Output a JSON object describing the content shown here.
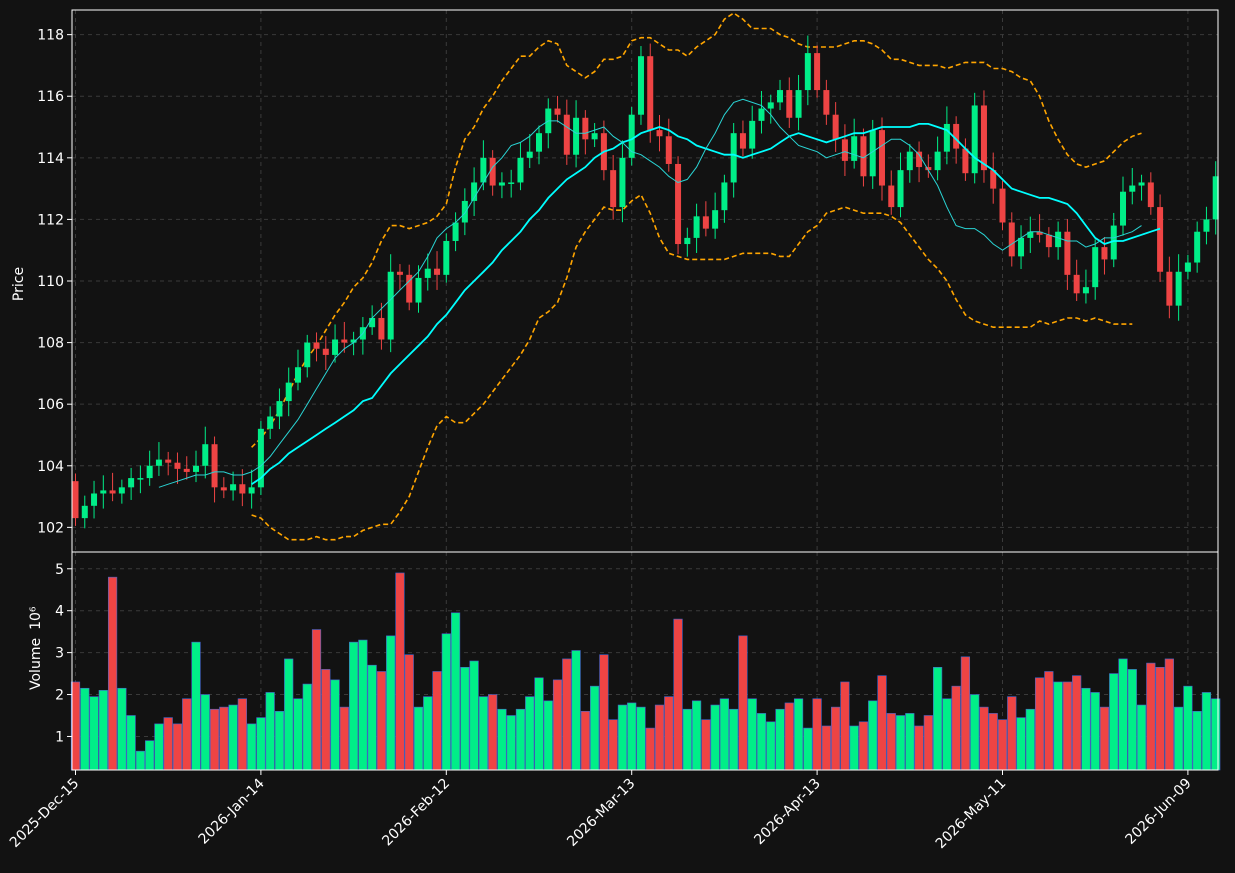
{
  "chart_data": [
    {
      "type": "candlestick",
      "title": "",
      "ylabel": "Price",
      "ylim": [
        101.2,
        118.8
      ],
      "yticks": [
        102,
        104,
        106,
        108,
        110,
        112,
        114,
        116,
        118
      ],
      "grid": true,
      "x_ticks": [
        "2025-Dec-15",
        "2026-Jan-14",
        "2026-Feb-12",
        "2026-Mar-13",
        "2026-Apr-13",
        "2026-May-11",
        "2026-Jun-09"
      ],
      "x_tick_index": [
        0,
        20,
        40,
        60,
        80,
        100,
        120
      ],
      "n_bars": 124,
      "ohlc": {
        "open": [
          103.5,
          102.3,
          102.7,
          103.1,
          103.2,
          103.1,
          103.3,
          103.6,
          103.6,
          104.0,
          104.2,
          104.1,
          103.9,
          103.8,
          104.0,
          104.7,
          103.3,
          103.2,
          103.4,
          103.1,
          103.3,
          105.2,
          105.6,
          106.1,
          106.7,
          107.2,
          108.0,
          107.8,
          107.6,
          108.1,
          108.0,
          108.1,
          108.5,
          108.8,
          108.1,
          110.3,
          110.2,
          109.3,
          110.1,
          110.4,
          110.2,
          111.3,
          111.9,
          112.6,
          113.2,
          114.0,
          113.1,
          113.2,
          113.2,
          114.0,
          114.2,
          114.8,
          115.6,
          115.4,
          114.1,
          115.3,
          114.6,
          114.8,
          113.6,
          112.4,
          114.0,
          115.4,
          117.3,
          114.9,
          114.7,
          113.8,
          111.2,
          111.4,
          112.1,
          111.7,
          112.3,
          113.2,
          114.8,
          114.3,
          115.2,
          115.6,
          115.8,
          116.2,
          115.3,
          116.2,
          117.4,
          116.2,
          115.4,
          114.6,
          113.9,
          114.7,
          113.4,
          114.9,
          113.1,
          112.4,
          113.6,
          114.2,
          113.7,
          113.6,
          114.2,
          115.1,
          114.3,
          113.5,
          115.7,
          113.6,
          113.0,
          111.9,
          110.8,
          111.4,
          111.6,
          111.5,
          111.1,
          111.6,
          110.2,
          109.6,
          109.8,
          111.1,
          110.7,
          111.8,
          112.9,
          113.1,
          113.2,
          112.4,
          110.3,
          109.2,
          110.3,
          110.6,
          111.6,
          112.0,
          112.8,
          113.4
        ]
      },
      "series": [
        {
          "name": "",
          "color": "#ffa500",
          "style": "dashed",
          "start_index": 19,
          "values": [
            104.6,
            104.9,
            105.3,
            105.8,
            106.4,
            107.0,
            107.5,
            107.9,
            108.4,
            108.9,
            109.3,
            109.8,
            110.1,
            110.6,
            111.3,
            111.8,
            111.8,
            111.7,
            111.8,
            111.9,
            112.1,
            112.5,
            113.7,
            114.6,
            115.0,
            115.6,
            116.0,
            116.5,
            116.9,
            117.3,
            117.3,
            117.6,
            117.8,
            117.7,
            117.0,
            116.8,
            116.6,
            116.8,
            117.2,
            117.2,
            117.3,
            117.8,
            117.9,
            117.9,
            117.7,
            117.5,
            117.5,
            117.3,
            117.6,
            117.8,
            118.0,
            118.5,
            118.7,
            118.5,
            118.2,
            118.2,
            118.2,
            118.0,
            117.9,
            117.7,
            117.6,
            117.6,
            117.6,
            117.6,
            117.7,
            117.8,
            117.8,
            117.7,
            117.5,
            117.2,
            117.2,
            117.1,
            117.0,
            117.0,
            117.0,
            116.9,
            117.0,
            117.1,
            117.1,
            117.1,
            116.9,
            116.9,
            116.8,
            116.6,
            116.5,
            116.0,
            115.2,
            114.6,
            114.1,
            113.8,
            113.7,
            113.8,
            113.9,
            114.2,
            114.5,
            114.7,
            114.8
          ]
        },
        {
          "name": "",
          "color": "#ffa500",
          "style": "dashed",
          "start_index": 19,
          "values": [
            102.4,
            102.3,
            102.0,
            101.8,
            101.6,
            101.6,
            101.6,
            101.7,
            101.6,
            101.6,
            101.7,
            101.7,
            101.9,
            102.0,
            102.1,
            102.1,
            102.5,
            103.0,
            103.8,
            104.6,
            105.3,
            105.6,
            105.4,
            105.4,
            105.7,
            106.0,
            106.4,
            106.8,
            107.2,
            107.6,
            108.1,
            108.8,
            109.0,
            109.3,
            110.1,
            111.1,
            111.6,
            112.0,
            112.4,
            112.3,
            112.3,
            112.6,
            112.8,
            112.2,
            111.4,
            110.9,
            110.8,
            110.7,
            110.7,
            110.7,
            110.7,
            110.7,
            110.8,
            110.9,
            110.9,
            110.9,
            110.9,
            110.8,
            110.8,
            111.2,
            111.6,
            111.8,
            112.2,
            112.3,
            112.4,
            112.3,
            112.2,
            112.2,
            112.2,
            112.1,
            111.9,
            111.5,
            111.1,
            110.7,
            110.4,
            110.0,
            109.4,
            108.9,
            108.7,
            108.6,
            108.5,
            108.5,
            108.5,
            108.5,
            108.5,
            108.7,
            108.6,
            108.7,
            108.8,
            108.8,
            108.7,
            108.8,
            108.7,
            108.6,
            108.6,
            108.6
          ]
        },
        {
          "name": "",
          "color": "#00ffff",
          "style": "solid",
          "start_index": 19,
          "values": [
            103.4,
            103.6,
            103.9,
            104.1,
            104.4,
            104.6,
            104.8,
            105.0,
            105.2,
            105.4,
            105.6,
            105.8,
            106.1,
            106.2,
            106.6,
            107.0,
            107.3,
            107.6,
            107.9,
            108.2,
            108.6,
            108.9,
            109.3,
            109.7,
            110.0,
            110.3,
            110.6,
            111.0,
            111.3,
            111.6,
            112.0,
            112.3,
            112.7,
            113.0,
            113.3,
            113.5,
            113.7,
            114.0,
            114.2,
            114.3,
            114.5,
            114.6,
            114.8,
            114.9,
            115.0,
            114.9,
            114.7,
            114.6,
            114.4,
            114.3,
            114.2,
            114.1,
            114.1,
            114.0,
            114.1,
            114.2,
            114.3,
            114.5,
            114.7,
            114.8,
            114.7,
            114.6,
            114.5,
            114.6,
            114.7,
            114.8,
            114.8,
            114.9,
            115.0,
            115.0,
            115.0,
            115.0,
            115.1,
            115.1,
            115.0,
            114.9,
            114.6,
            114.3,
            114.0,
            113.8,
            113.6,
            113.3,
            113.0,
            112.9,
            112.8,
            112.7,
            112.7,
            112.6,
            112.5,
            112.2,
            111.8,
            111.4,
            111.2,
            111.3,
            111.3,
            111.4,
            111.5,
            111.6,
            111.7
          ]
        },
        {
          "name": "",
          "color": "#2ad4d4",
          "style": "thin",
          "start_index": 9,
          "values": [
            103.3,
            103.4,
            103.5,
            103.6,
            103.7,
            103.7,
            103.8,
            103.8,
            103.7,
            103.7,
            103.8,
            104.0,
            104.3,
            104.7,
            105.1,
            105.5,
            106.0,
            106.5,
            107.0,
            107.5,
            107.8,
            108.0,
            108.3,
            108.8,
            109.1,
            109.4,
            109.7,
            110.0,
            110.3,
            110.8,
            111.4,
            111.7,
            111.9,
            112.2,
            112.7,
            113.2,
            113.7,
            114.0,
            114.4,
            114.5,
            114.7,
            115.0,
            115.2,
            115.2,
            115.0,
            114.8,
            114.8,
            114.9,
            115.0,
            114.7,
            114.5,
            114.2,
            114.1,
            113.9,
            113.7,
            113.4,
            113.2,
            113.3,
            113.7,
            114.3,
            114.8,
            115.4,
            115.8,
            115.9,
            115.8,
            115.7,
            115.4,
            115.0,
            114.7,
            114.4,
            114.3,
            114.2,
            114.0,
            114.1,
            114.2,
            114.1,
            114.0,
            114.2,
            114.4,
            114.6,
            114.6,
            114.4,
            114.1,
            113.6,
            113.1,
            112.4,
            111.8,
            111.7,
            111.7,
            111.5,
            111.2,
            111.0,
            111.2,
            111.4,
            111.6,
            111.6,
            111.5,
            111.4,
            111.3,
            111.3,
            111.1,
            111.2,
            111.4,
            111.4,
            111.5,
            111.6,
            111.8
          ]
        }
      ]
    },
    {
      "type": "bar",
      "title": "",
      "ylabel": "Volume",
      "ylabel_exponent": "10⁶",
      "ylim": [
        0.2,
        5.4
      ],
      "yticks": [
        1,
        2,
        3,
        4,
        5
      ],
      "grid": true,
      "values": [
        2.3,
        2.15,
        1.95,
        2.1,
        4.8,
        2.15,
        1.5,
        0.65,
        0.9,
        1.3,
        1.45,
        1.3,
        1.9,
        3.25,
        2.0,
        1.65,
        1.7,
        1.75,
        1.9,
        1.3,
        1.45,
        2.05,
        1.6,
        2.85,
        1.9,
        2.25,
        3.55,
        2.6,
        2.35,
        1.7,
        3.25,
        3.3,
        2.7,
        2.55,
        3.4,
        4.9,
        2.95,
        1.7,
        1.95,
        2.55,
        3.45,
        3.95,
        2.65,
        2.8,
        1.95,
        2.0,
        1.65,
        1.5,
        1.65,
        1.95,
        2.4,
        1.85,
        2.35,
        2.85,
        3.05,
        1.6,
        2.2,
        2.95,
        1.4,
        1.75,
        1.8,
        1.7,
        1.2,
        1.75,
        1.95,
        3.8,
        1.65,
        1.85,
        1.4,
        1.75,
        1.9,
        1.65,
        3.4,
        1.9,
        1.55,
        1.35,
        1.65,
        1.8,
        1.9,
        1.2,
        1.9,
        1.25,
        1.7,
        2.3,
        1.25,
        1.35,
        1.85,
        2.45,
        1.55,
        1.5,
        1.55,
        1.25,
        1.5,
        2.65,
        1.9,
        2.2,
        2.9,
        2.0,
        1.7,
        1.55,
        1.4,
        1.95,
        1.45,
        1.65,
        2.4,
        2.55,
        2.3,
        2.3,
        2.45,
        2.15,
        2.05,
        1.7,
        2.5,
        2.85,
        2.6,
        1.75,
        2.75,
        2.65,
        2.85,
        1.7,
        2.2,
        1.6,
        2.05,
        1.9
      ]
    }
  ],
  "colors": {
    "background": "#121212",
    "up": "#00ee88",
    "down": "#ee4444",
    "axis": "#ffffff",
    "grid": "#3a3a3a",
    "band": "#ffa500",
    "ma_long": "#00ffff",
    "ma_short": "#2ad4d4"
  }
}
